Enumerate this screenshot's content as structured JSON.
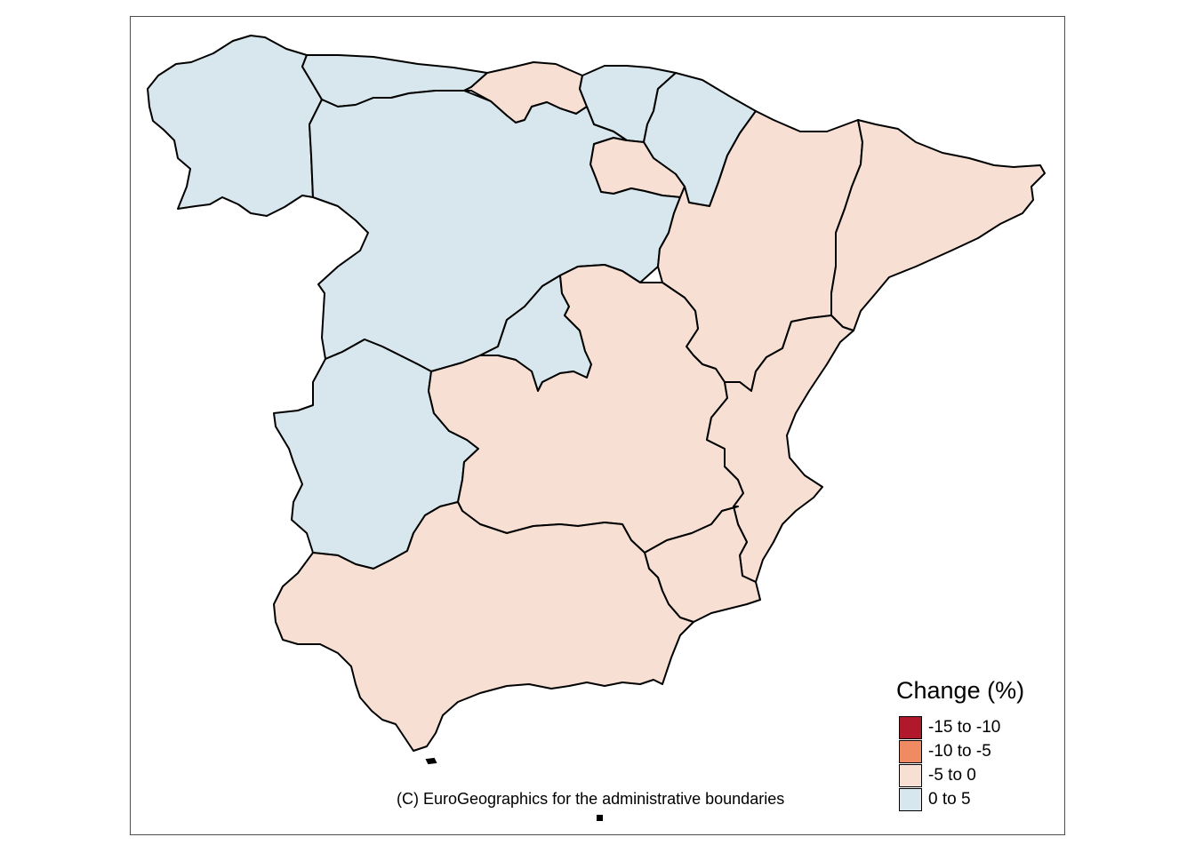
{
  "map": {
    "regions": [
      {
        "name": "Galicia",
        "class": "0 to 5"
      },
      {
        "name": "Asturias",
        "class": "0 to 5"
      },
      {
        "name": "Cantabria",
        "class": "-5 to 0"
      },
      {
        "name": "País Vasco",
        "class": "0 to 5"
      },
      {
        "name": "Navarra",
        "class": "0 to 5"
      },
      {
        "name": "La Rioja",
        "class": "-5 to 0"
      },
      {
        "name": "Castilla y León",
        "class": "0 to 5"
      },
      {
        "name": "Aragón",
        "class": "-5 to 0"
      },
      {
        "name": "Cataluña",
        "class": "-5 to 0"
      },
      {
        "name": "Madrid",
        "class": "0 to 5"
      },
      {
        "name": "Extremadura",
        "class": "0 to 5"
      },
      {
        "name": "Castilla-La Mancha",
        "class": "-5 to 0"
      },
      {
        "name": "Comunidad Valenciana",
        "class": "-5 to 0"
      },
      {
        "name": "Murcia",
        "class": "-5 to 0"
      },
      {
        "name": "Andalucía",
        "class": "-5 to 0"
      }
    ]
  },
  "legend": {
    "title": "Change (%)",
    "items": [
      {
        "label": "-15 to -10",
        "color": "#b2182b"
      },
      {
        "label": "-10 to -5",
        "color": "#ef8a62"
      },
      {
        "label": "-5 to 0",
        "color": "#f7e0d3"
      },
      {
        "label": "0 to 5",
        "color": "#d8e6ed"
      }
    ]
  },
  "credit": "(C) EuroGeographics for the administrative boundaries"
}
